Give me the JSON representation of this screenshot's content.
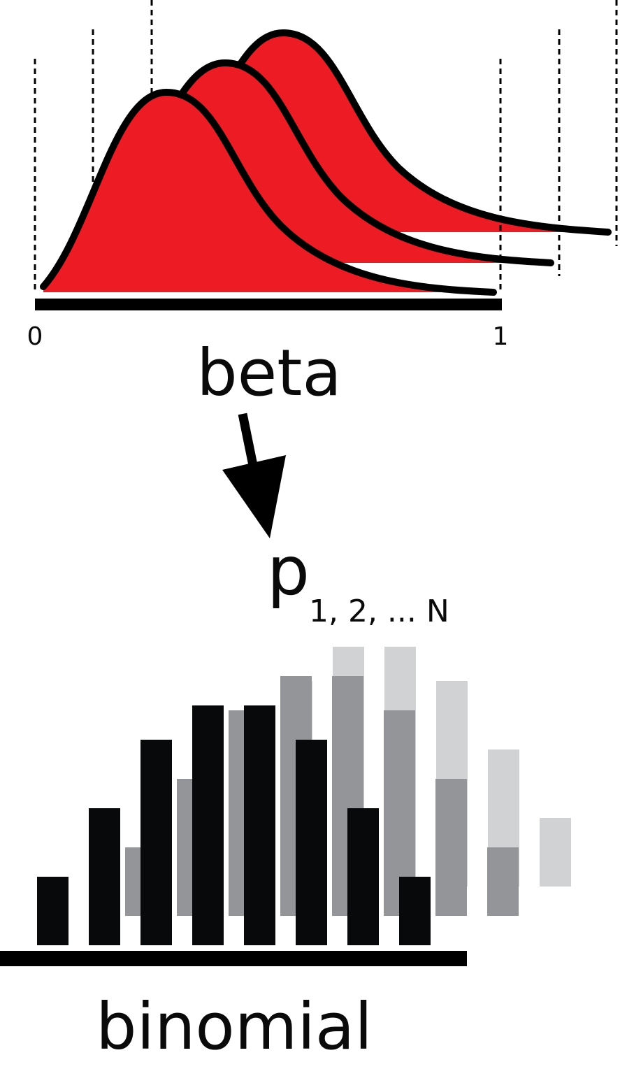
{
  "beta": {
    "label": "beta",
    "axis_start_label": "0",
    "axis_end_label": "1",
    "fill_color": "#ED1C24",
    "curve_count": 3
  },
  "arrow": {
    "icon": "arrow-down-icon"
  },
  "parameter": {
    "symbol": "p",
    "subscript": "1, 2, ... N"
  },
  "binomial": {
    "label": "binomial",
    "colors": [
      "#d1d2d4",
      "#939598",
      "#08090b"
    ],
    "series": [
      {
        "values": [
          2,
          4,
          6,
          7,
          7,
          6,
          4,
          2
        ]
      },
      {
        "values": [
          2,
          4,
          6,
          7,
          7,
          6,
          4,
          2
        ]
      },
      {
        "values": [
          2,
          4,
          6,
          7,
          7,
          6,
          4,
          2
        ]
      }
    ]
  }
}
